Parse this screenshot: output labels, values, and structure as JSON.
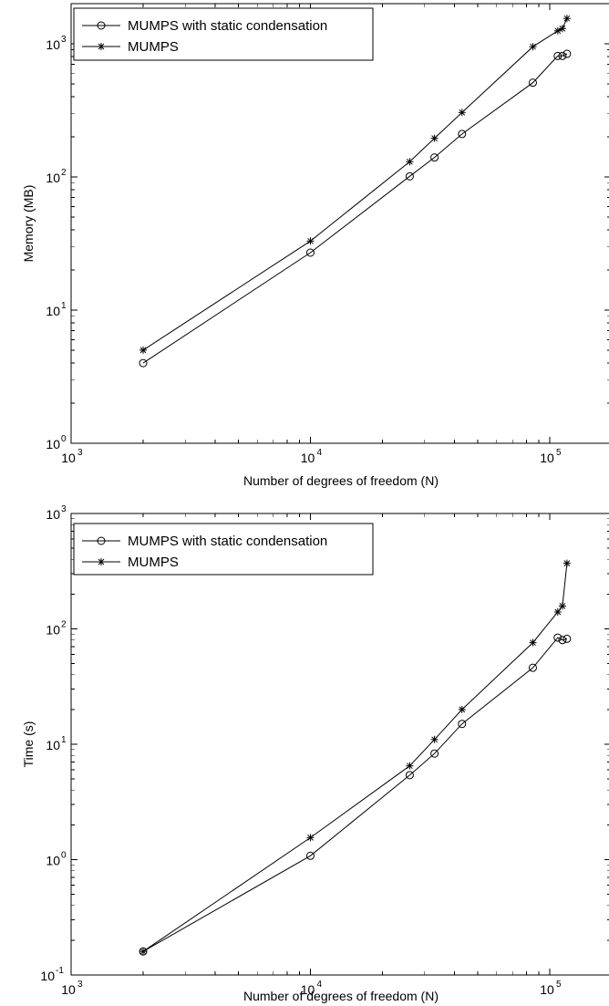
{
  "chart_data": [
    {
      "type": "line",
      "title": "",
      "xlabel": "Number of degrees of freedom (N)",
      "ylabel": "Memory (MB)",
      "xscale": "log",
      "yscale": "log",
      "xlim": [
        1000,
        180000
      ],
      "ylim": [
        1,
        2000
      ],
      "xticks": [
        {
          "base": "10",
          "exp": "3",
          "value": 1000
        },
        {
          "base": "10",
          "exp": "4",
          "value": 10000
        },
        {
          "base": "10",
          "exp": "5",
          "value": 100000
        }
      ],
      "yticks": [
        {
          "base": "10",
          "exp": "0",
          "value": 1
        },
        {
          "base": "10",
          "exp": "1",
          "value": 10
        },
        {
          "base": "10",
          "exp": "2",
          "value": 100
        },
        {
          "base": "10",
          "exp": "3",
          "value": 1000
        }
      ],
      "legend_position": "top-left",
      "series": [
        {
          "name": "MUMPS with static condensation",
          "marker": "circle",
          "x": [
            2000,
            10000,
            26000,
            33000,
            43000,
            85000,
            108000,
            113000,
            118000
          ],
          "y": [
            4.0,
            27,
            101,
            140,
            210,
            510,
            810,
            810,
            840
          ]
        },
        {
          "name": "MUMPS",
          "marker": "star",
          "x": [
            2000,
            10000,
            26000,
            33000,
            43000,
            85000,
            108000,
            113000,
            118000
          ],
          "y": [
            5.0,
            33,
            130,
            195,
            305,
            950,
            1250,
            1300,
            1550
          ]
        }
      ]
    },
    {
      "type": "line",
      "title": "",
      "xlabel": "Number of degrees of freedom (N)",
      "ylabel": "Time (s)",
      "xscale": "log",
      "yscale": "log",
      "xlim": [
        1000,
        180000
      ],
      "ylim": [
        0.1,
        1000
      ],
      "xticks": [
        {
          "base": "10",
          "exp": "3",
          "value": 1000
        },
        {
          "base": "10",
          "exp": "4",
          "value": 10000
        },
        {
          "base": "10",
          "exp": "5",
          "value": 100000
        }
      ],
      "yticks": [
        {
          "base": "10",
          "exp": "-1",
          "value": 0.1
        },
        {
          "base": "10",
          "exp": "0",
          "value": 1
        },
        {
          "base": "10",
          "exp": "1",
          "value": 10
        },
        {
          "base": "10",
          "exp": "2",
          "value": 100
        },
        {
          "base": "10",
          "exp": "3",
          "value": 1000
        }
      ],
      "legend_position": "top-left",
      "series": [
        {
          "name": "MUMPS with static condensation",
          "marker": "circle",
          "x": [
            2000,
            10000,
            26000,
            33000,
            43000,
            85000,
            108000,
            113000,
            118000
          ],
          "y": [
            0.16,
            1.08,
            5.4,
            8.3,
            15,
            46,
            84,
            80,
            82
          ]
        },
        {
          "name": "MUMPS",
          "marker": "star",
          "x": [
            2000,
            10000,
            26000,
            33000,
            43000,
            85000,
            108000,
            113000,
            118000
          ],
          "y": [
            0.16,
            1.55,
            6.5,
            11,
            20,
            76,
            140,
            158,
            370
          ]
        }
      ]
    }
  ]
}
